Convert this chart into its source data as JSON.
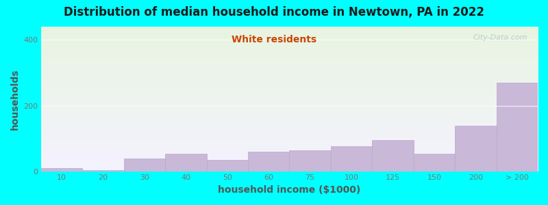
{
  "title": "Distribution of median household income in Newtown, PA in 2022",
  "subtitle": "White residents",
  "xlabel": "household income ($1000)",
  "ylabel": "households",
  "background_color": "#00FFFF",
  "plot_bg_gradient_top": "#e8f5e0",
  "plot_bg_gradient_bottom": "#f5f2ff",
  "bar_color": "#c9b8d8",
  "bar_edge_color": "#b8a8cc",
  "categories": [
    "10",
    "20",
    "30",
    "40",
    "50",
    "60",
    "75",
    "100",
    "125",
    "150",
    "200",
    "> 200"
  ],
  "values": [
    10,
    5,
    40,
    55,
    35,
    60,
    65,
    78,
    95,
    55,
    140,
    270
  ],
  "ylim": [
    0,
    440
  ],
  "yticks": [
    0,
    200,
    400
  ],
  "watermark": "City-Data.com",
  "title_fontsize": 12,
  "subtitle_fontsize": 10,
  "subtitle_color": "#cc4400",
  "axis_label_color": "#555555",
  "axis_label_fontsize": 10,
  "tick_fontsize": 8,
  "tick_color": "#777777"
}
